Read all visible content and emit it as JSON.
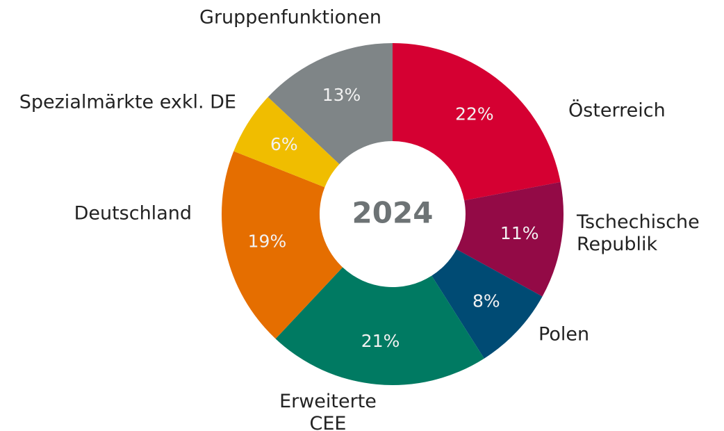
{
  "chart_data": {
    "type": "donut",
    "center_label": "2024",
    "categories": [
      "Österreich",
      "Tschechische\nRepublik",
      "Polen",
      "Erweiterte\nCEE",
      "Deutschland",
      "Spezialmärkte exkl. DE",
      "Gruppenfunktionen"
    ],
    "values": [
      22,
      11,
      8,
      21,
      19,
      6,
      13
    ],
    "value_labels": [
      "22%",
      "11%",
      "8%",
      "21%",
      "19%",
      "6%",
      "13%"
    ],
    "colors": [
      "#d50032",
      "#930a46",
      "#004b74",
      "#007a62",
      "#e56e00",
      "#f0bd00",
      "#7f8587"
    ]
  }
}
